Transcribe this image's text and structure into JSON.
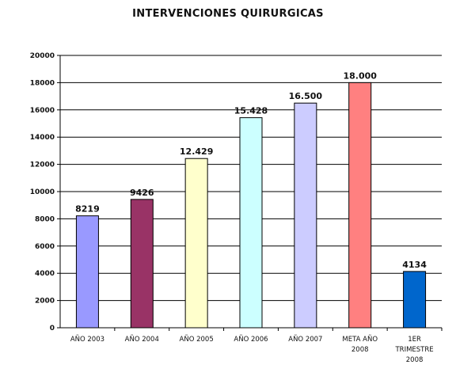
{
  "chart_data": {
    "type": "bar",
    "title": "INTERVENCIONES QUIRURGICAS",
    "xlabel": "",
    "ylabel": "",
    "ylim": [
      0,
      20000
    ],
    "yticks": [
      0,
      2000,
      4000,
      6000,
      8000,
      10000,
      12000,
      14000,
      16000,
      18000,
      20000
    ],
    "grid": true,
    "legend": "none",
    "categories": [
      [
        "AÑO 2003"
      ],
      [
        "AÑO 2004"
      ],
      [
        "AÑO 2005"
      ],
      [
        "AÑO 2006"
      ],
      [
        "AÑO 2007"
      ],
      [
        "META AÑO",
        "2008"
      ],
      [
        "1ER",
        "TRIMESTRE",
        "2008"
      ]
    ],
    "values": [
      8219,
      9426,
      12429,
      15428,
      16500,
      18000,
      4134
    ],
    "data_labels": [
      "8219",
      "9426",
      "12.429",
      "15.428",
      "16.500",
      "18.000",
      "4134"
    ],
    "colors": [
      "#9999ff",
      "#993366",
      "#ffffcc",
      "#ccffff",
      "#ccccff",
      "#ff8080",
      "#0066cc"
    ]
  }
}
